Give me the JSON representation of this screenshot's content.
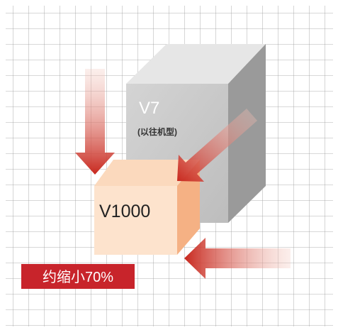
{
  "old_model": {
    "name": "V7",
    "note": "(以往机型)"
  },
  "new_model": {
    "name": "V1000"
  },
  "badge": "约缩小70%"
}
